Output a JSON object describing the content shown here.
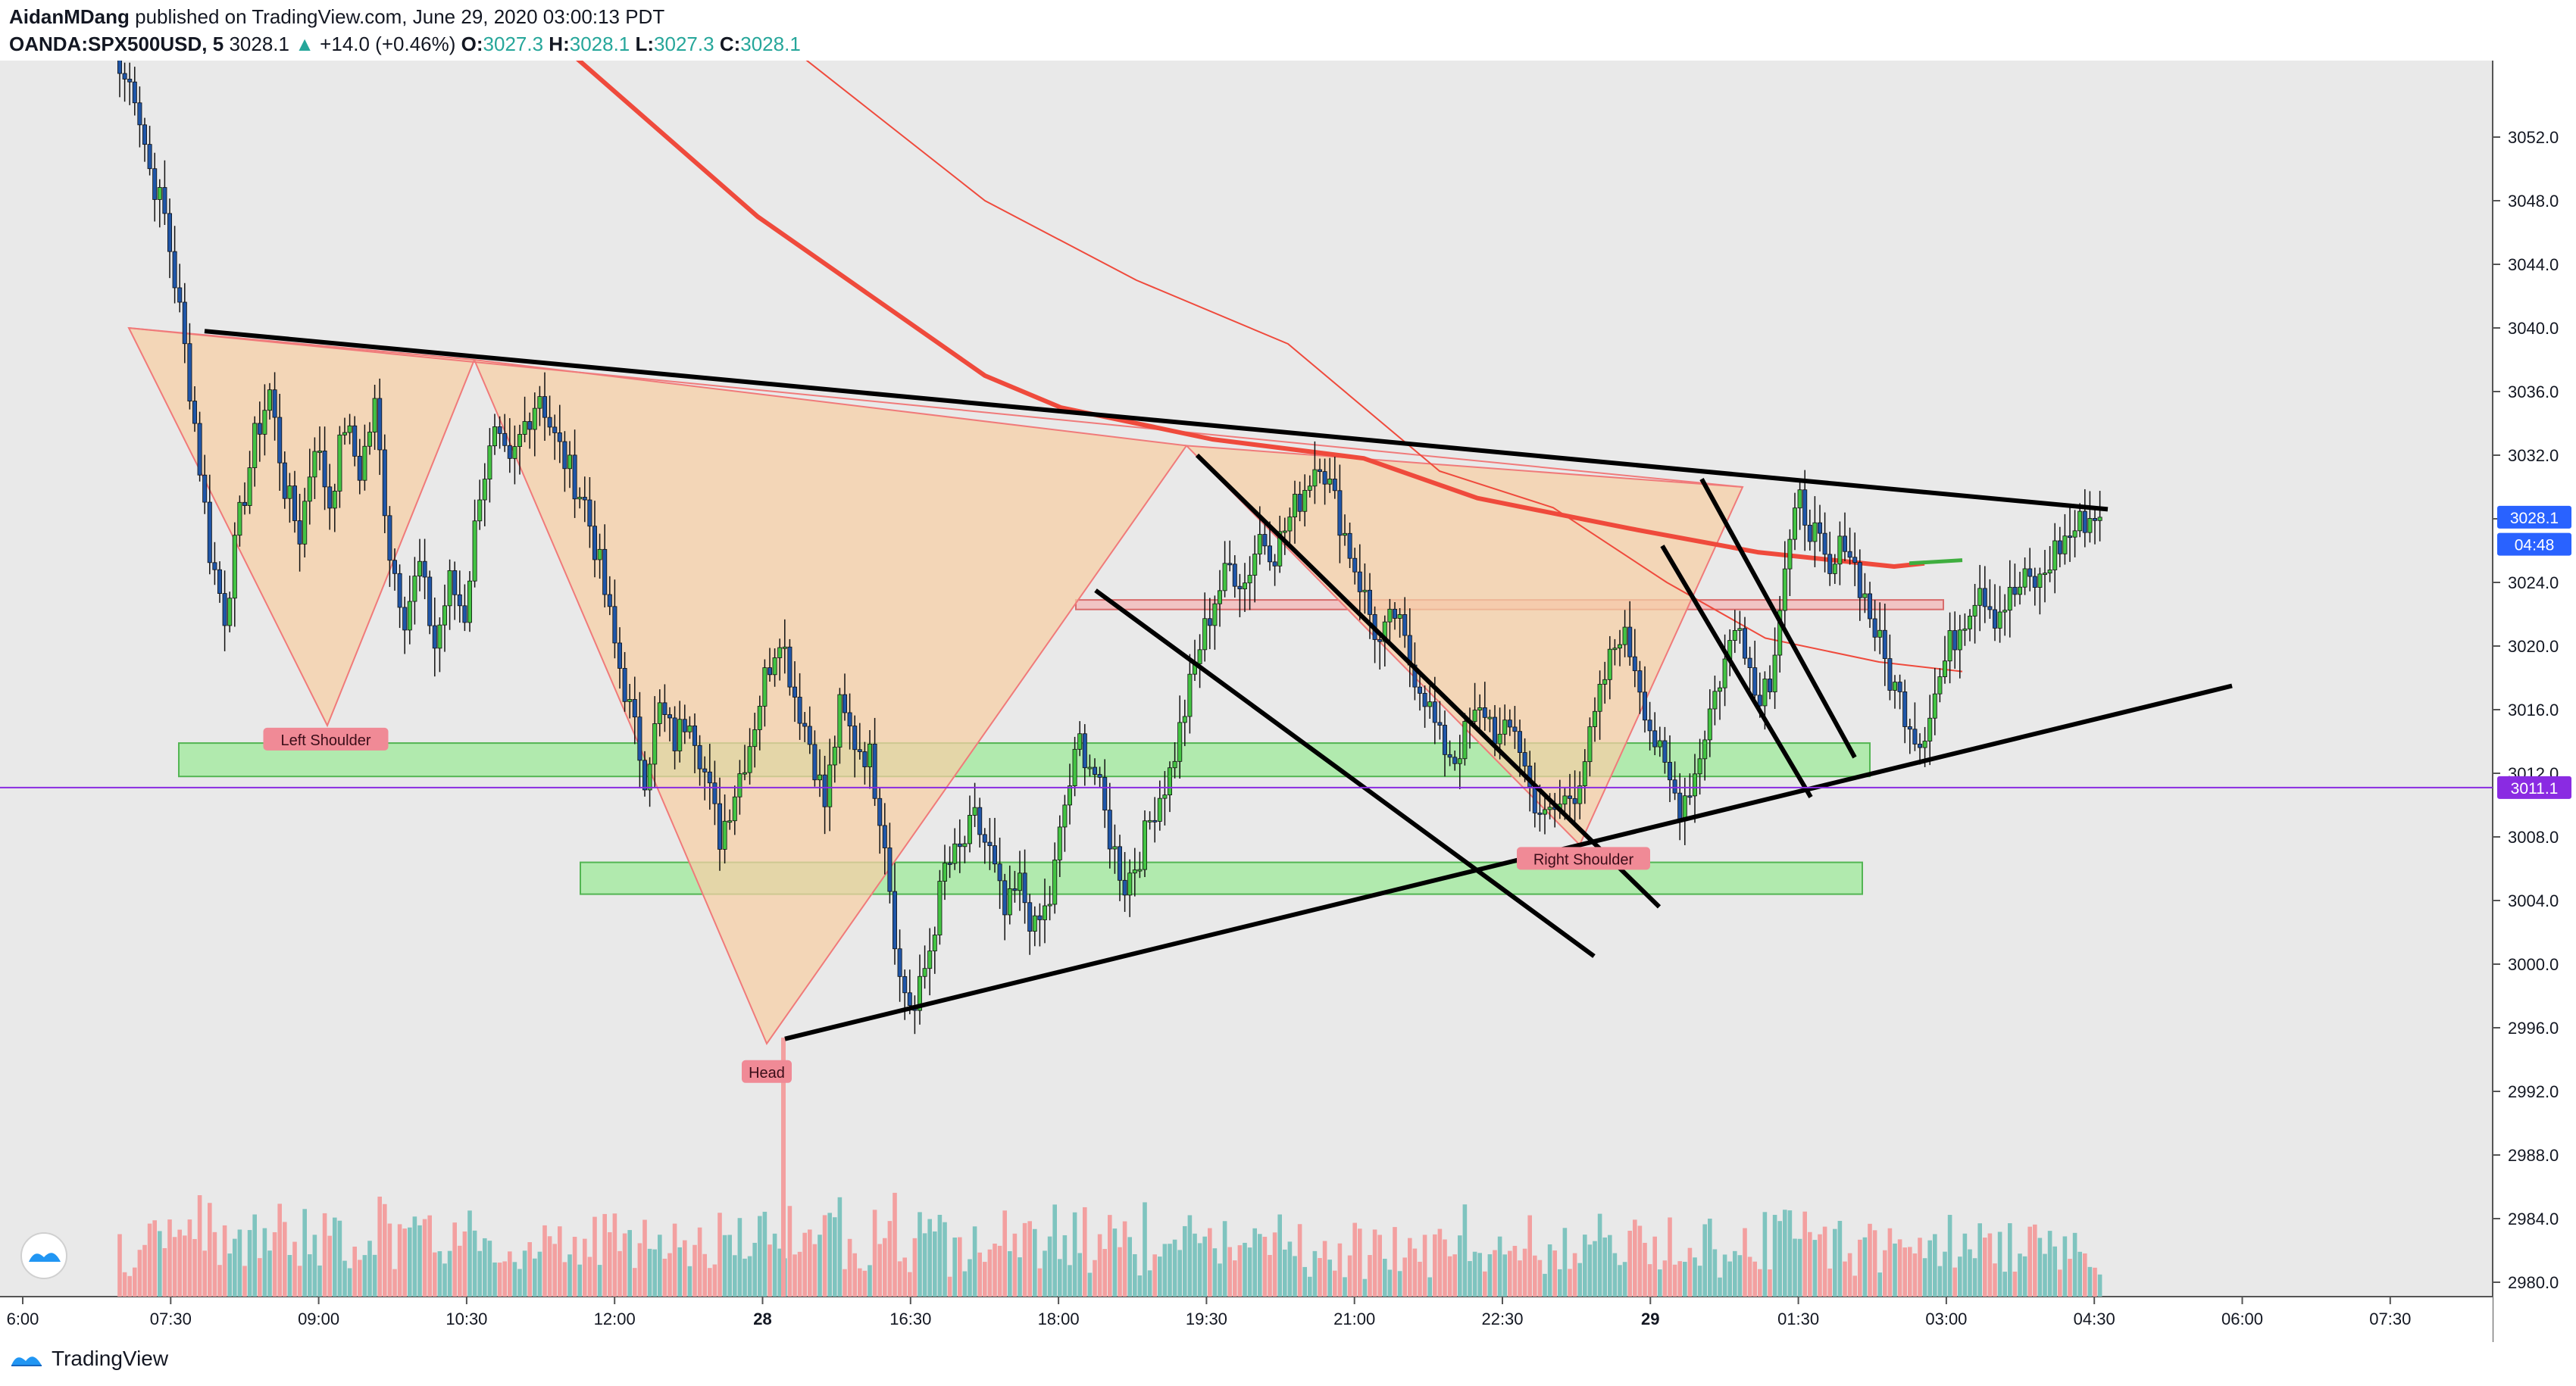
{
  "header": {
    "author": "AidanMDang",
    "published": " published on TradingView.com, June 29, 2020 03:00:13 PDT",
    "symbol": "OANDA:SPX500USD, 5",
    "last": "3028.1",
    "arrow": "▲",
    "change": "+14.0 (+0.46%)",
    "o_label": "O:",
    "o_value": "3027.3",
    "h_label": "H:",
    "h_value": "3028.1",
    "l_label": "L:",
    "l_value": "3027.3",
    "c_label": "C:",
    "c_value": "3028.1"
  },
  "footer": {
    "brand": "TradingView"
  },
  "colors": {
    "background": "#e9e9e9",
    "bull_body": "#43c443",
    "bear_body": "#1f56a8",
    "wick": "#111111",
    "vol_up": "#7fc4bf",
    "vol_down": "#f3a0a0",
    "ma_fast": "#ef4a3c",
    "ma_slow": "#ef4a3c",
    "pattern_fill": "#f5cfa5",
    "zone_green": "#9ee99a",
    "zone_red": "#f3b7b7",
    "purple_line": "#8a2be2",
    "price_tag": "#2962ff"
  },
  "chart_data": {
    "type": "candlestick",
    "symbol": "OANDA:SPX500USD",
    "interval": "5",
    "y_range": [
      2977,
      3057
    ],
    "y_ticks": [
      "3052.0",
      "3048.0",
      "3044.0",
      "3040.0",
      "3036.0",
      "3032.0",
      "3028.0",
      "3024.0",
      "3020.0",
      "3016.0",
      "3012.0",
      "3008.0",
      "3004.0",
      "3000.0",
      "2996.0",
      "2992.0",
      "2988.0",
      "2984.0",
      "2980.0"
    ],
    "x_ticks": [
      {
        "label": "6:00",
        "bold": false
      },
      {
        "label": "07:30",
        "bold": false
      },
      {
        "label": "09:00",
        "bold": false
      },
      {
        "label": "10:30",
        "bold": false
      },
      {
        "label": "12:00",
        "bold": false
      },
      {
        "label": "28",
        "bold": true
      },
      {
        "label": "16:30",
        "bold": false
      },
      {
        "label": "18:00",
        "bold": false
      },
      {
        "label": "19:30",
        "bold": false
      },
      {
        "label": "21:00",
        "bold": false
      },
      {
        "label": "22:30",
        "bold": false
      },
      {
        "label": "29",
        "bold": true
      },
      {
        "label": "01:30",
        "bold": false
      },
      {
        "label": "03:00",
        "bold": false
      },
      {
        "label": "04:30",
        "bold": false
      },
      {
        "label": "06:00",
        "bold": false
      },
      {
        "label": "07:30",
        "bold": false
      }
    ],
    "price_labels": [
      {
        "text": "3028.1",
        "value": 3028.1
      },
      {
        "text": "04:48",
        "value": 3026.4
      },
      {
        "text": "3011.1",
        "value": 3011.1
      }
    ],
    "horizontal_line": 3011.1,
    "annotations": [
      {
        "text": "Left Shoulder",
        "value": 3014.1
      },
      {
        "text": "Head",
        "value": 2993.2
      },
      {
        "text": "Right Shoulder",
        "value": 3006.6
      }
    ],
    "path": [
      [
        0,
        3056
      ],
      [
        3,
        3055
      ],
      [
        6,
        3050
      ],
      [
        9,
        3047
      ],
      [
        12,
        3041
      ],
      [
        15,
        3034
      ],
      [
        18,
        3026
      ],
      [
        21,
        3022
      ],
      [
        24,
        3028
      ],
      [
        27,
        3033
      ],
      [
        30,
        3036
      ],
      [
        33,
        3030
      ],
      [
        36,
        3027
      ],
      [
        39,
        3033
      ],
      [
        42,
        3029
      ],
      [
        45,
        3034
      ],
      [
        48,
        3031
      ],
      [
        51,
        3035
      ],
      [
        54,
        3026
      ],
      [
        57,
        3022
      ],
      [
        60,
        3025
      ],
      [
        63,
        3020
      ],
      [
        66,
        3024
      ],
      [
        69,
        3022
      ],
      [
        72,
        3030
      ],
      [
        75,
        3033
      ],
      [
        78,
        3031
      ],
      [
        81,
        3034
      ],
      [
        84,
        3036
      ],
      [
        87,
        3033
      ],
      [
        90,
        3031
      ],
      [
        93,
        3029
      ],
      [
        96,
        3025
      ],
      [
        99,
        3020
      ],
      [
        102,
        3016
      ],
      [
        105,
        3012
      ],
      [
        108,
        3016
      ],
      [
        111,
        3014
      ],
      [
        114,
        3016
      ],
      [
        117,
        3012
      ],
      [
        120,
        3008
      ],
      [
        123,
        3011
      ],
      [
        126,
        3014
      ],
      [
        129,
        3018
      ],
      [
        132,
        3021
      ],
      [
        135,
        3017
      ],
      [
        138,
        3014
      ],
      [
        141,
        3010
      ],
      [
        144,
        3016
      ],
      [
        147,
        3014
      ],
      [
        150,
        3013
      ],
      [
        153,
        3008
      ],
      [
        156,
        2999
      ],
      [
        159,
        2997
      ],
      [
        162,
        3001
      ],
      [
        165,
        3006
      ],
      [
        168,
        3007
      ],
      [
        171,
        3009
      ],
      [
        174,
        3007
      ],
      [
        177,
        3003
      ],
      [
        180,
        3005
      ],
      [
        183,
        3002
      ],
      [
        186,
        3004
      ],
      [
        189,
        3010
      ],
      [
        192,
        3014
      ],
      [
        195,
        3012
      ],
      [
        198,
        3008
      ],
      [
        201,
        3005
      ],
      [
        204,
        3007
      ],
      [
        207,
        3010
      ],
      [
        210,
        3012
      ],
      [
        213,
        3016
      ],
      [
        216,
        3020
      ],
      [
        219,
        3023
      ],
      [
        222,
        3025
      ],
      [
        225,
        3024
      ],
      [
        228,
        3027
      ],
      [
        231,
        3026
      ],
      [
        234,
        3028
      ],
      [
        237,
        3030
      ],
      [
        240,
        3032
      ],
      [
        243,
        3029
      ],
      [
        246,
        3026
      ],
      [
        249,
        3023
      ],
      [
        252,
        3020
      ],
      [
        255,
        3022
      ],
      [
        258,
        3019
      ],
      [
        261,
        3017
      ],
      [
        264,
        3014
      ],
      [
        267,
        3013
      ],
      [
        270,
        3015
      ],
      [
        273,
        3016
      ],
      [
        276,
        3014
      ],
      [
        279,
        3015
      ],
      [
        282,
        3011
      ],
      [
        285,
        3009
      ],
      [
        288,
        3010
      ],
      [
        291,
        3011
      ],
      [
        294,
        3014
      ],
      [
        297,
        3018
      ],
      [
        300,
        3021
      ],
      [
        303,
        3019
      ],
      [
        306,
        3015
      ],
      [
        309,
        3012
      ],
      [
        312,
        3010
      ],
      [
        315,
        3012
      ],
      [
        318,
        3016
      ],
      [
        321,
        3019
      ],
      [
        324,
        3022
      ],
      [
        327,
        3017
      ],
      [
        330,
        3018
      ],
      [
        333,
        3025
      ],
      [
        336,
        3029
      ],
      [
        339,
        3027
      ],
      [
        342,
        3024
      ],
      [
        345,
        3027
      ],
      [
        348,
        3024
      ],
      [
        351,
        3021
      ],
      [
        354,
        3018
      ],
      [
        357,
        3016
      ],
      [
        360,
        3014
      ],
      [
        363,
        3017
      ],
      [
        366,
        3020
      ],
      [
        369,
        3022
      ],
      [
        372,
        3024
      ],
      [
        375,
        3022
      ],
      [
        378,
        3023
      ],
      [
        381,
        3024
      ],
      [
        384,
        3024
      ],
      [
        387,
        3026
      ],
      [
        390,
        3027
      ],
      [
        393,
        3028
      ],
      [
        396,
        3028.1
      ]
    ]
  }
}
